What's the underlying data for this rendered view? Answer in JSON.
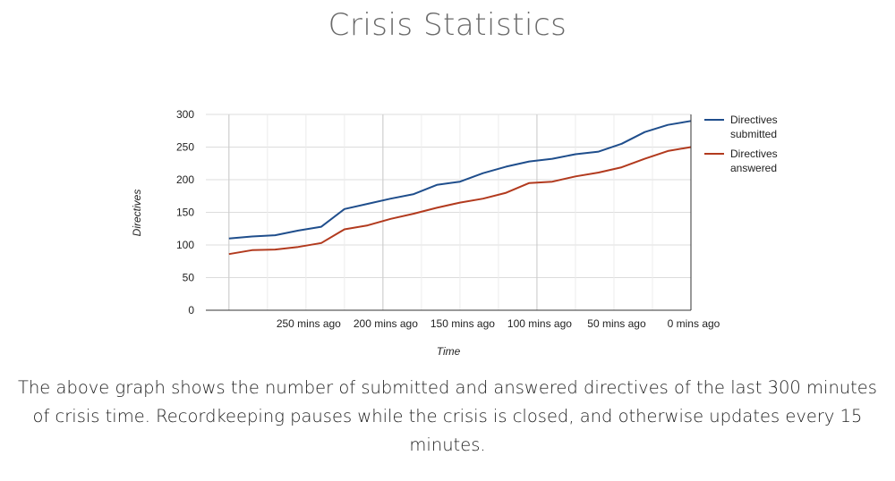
{
  "page": {
    "title": "Crisis Statistics",
    "description": "The above graph shows the number of submitted and answered directives of the last 300 minutes of crisis time. Recordkeeping pauses while the crisis is closed, and otherwise updates every 15 minutes."
  },
  "chart_data": {
    "type": "line",
    "xlabel": "Time",
    "ylabel": "Directives",
    "ylim": [
      0,
      300
    ],
    "yticks": [
      0,
      50,
      100,
      150,
      200,
      250,
      300
    ],
    "x_minutes_ago": [
      300,
      285,
      270,
      255,
      240,
      225,
      210,
      195,
      180,
      165,
      150,
      135,
      120,
      105,
      90,
      75,
      60,
      45,
      30,
      15,
      0
    ],
    "xtick_labels": [
      {
        "value": 250,
        "label": "250 mins ago"
      },
      {
        "value": 200,
        "label": "200 mins ago"
      },
      {
        "value": 150,
        "label": "150 mins ago"
      },
      {
        "value": 100,
        "label": "100 mins ago"
      },
      {
        "value": 50,
        "label": "50 mins ago"
      },
      {
        "value": 0,
        "label": "0 mins ago"
      }
    ],
    "grid": true,
    "legend_position": "right",
    "series": [
      {
        "name": "Directives submitted",
        "legend_lines": [
          "Directives",
          "submitted"
        ],
        "color": "#1f4e8c",
        "values": [
          110,
          113,
          115,
          122,
          128,
          155,
          163,
          171,
          178,
          192,
          197,
          210,
          220,
          228,
          232,
          239,
          243,
          255,
          273,
          284,
          290
        ]
      },
      {
        "name": "Directives answered",
        "legend_lines": [
          "Directives",
          "answered"
        ],
        "color": "#b23a1e",
        "values": [
          86,
          92,
          93,
          97,
          103,
          124,
          130,
          140,
          148,
          157,
          165,
          171,
          180,
          195,
          197,
          205,
          211,
          219,
          232,
          244,
          250
        ]
      }
    ]
  }
}
